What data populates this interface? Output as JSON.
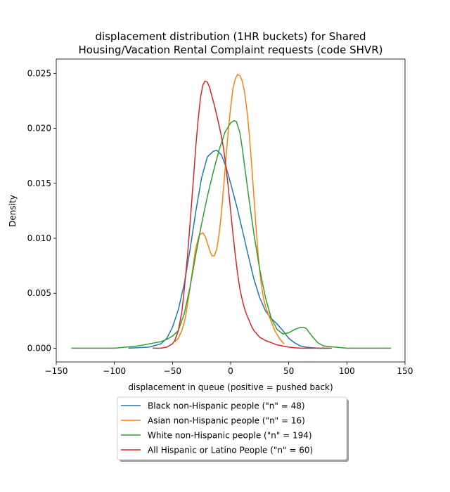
{
  "chart_data": {
    "type": "line",
    "title_lines": [
      "displacement distribution (1HR buckets) for Shared",
      "Housing/Vacation Rental Complaint requests (code SHVR)"
    ],
    "xlabel": "displacement in queue (positive = pushed back)",
    "ylabel": "Density",
    "xlim": [
      -150,
      150
    ],
    "ylim": [
      -0.00125,
      0.0263
    ],
    "xticks": [
      -150,
      -100,
      -50,
      0,
      50,
      100,
      150
    ],
    "xtick_labels": [
      "−150",
      "−100",
      "−50",
      "0",
      "50",
      "100",
      "150"
    ],
    "yticks": [
      0.0,
      0.005,
      0.01,
      0.015,
      0.02,
      0.025
    ],
    "ytick_labels": [
      "0.000",
      "0.005",
      "0.010",
      "0.015",
      "0.020",
      "0.025"
    ],
    "grid": false,
    "legend_position": "below plot",
    "series": [
      {
        "name": "Black non-Hispanic people (\"n\" = 48)",
        "color": "#1f77b4",
        "x": [
          -88,
          -70,
          -60,
          -55,
          -50,
          -45,
          -40,
          -35,
          -30,
          -25,
          -20,
          -15,
          -12,
          -8,
          -4,
          0,
          5,
          10,
          15,
          20,
          25,
          30,
          35,
          40,
          45,
          50,
          55,
          60,
          65,
          70,
          75,
          84
        ],
        "y": [
          0.0,
          0.0001,
          0.0004,
          0.0009,
          0.0019,
          0.0035,
          0.0058,
          0.0089,
          0.0124,
          0.0155,
          0.0174,
          0.0179,
          0.018,
          0.0176,
          0.0165,
          0.015,
          0.013,
          0.0108,
          0.0085,
          0.0063,
          0.0046,
          0.0034,
          0.0027,
          0.0022,
          0.0016,
          0.0009,
          0.0005,
          0.0002,
          0.0001,
          5e-05,
          0.0,
          0.0
        ]
      },
      {
        "name": "Asian non-Hispanic people (\"n\" = 16)",
        "color": "#ff7f0e",
        "x": [
          -48,
          -45,
          -42,
          -40,
          -38,
          -35,
          -32,
          -30,
          -27,
          -24,
          -22,
          -20,
          -18,
          -16,
          -14,
          -12,
          -10,
          -8,
          -6,
          -4,
          -2,
          0,
          2,
          4,
          6,
          8,
          10,
          12,
          14,
          16,
          18,
          20,
          22,
          24,
          26,
          28,
          30,
          32,
          35,
          38,
          42,
          45,
          46
        ],
        "y": [
          0.0006,
          0.0009,
          0.0016,
          0.0023,
          0.0034,
          0.0054,
          0.0077,
          0.0091,
          0.0103,
          0.0105,
          0.0102,
          0.0096,
          0.0089,
          0.0084,
          0.0084,
          0.009,
          0.0103,
          0.0122,
          0.0147,
          0.0173,
          0.0198,
          0.0219,
          0.0236,
          0.0245,
          0.0249,
          0.0248,
          0.0243,
          0.0233,
          0.0217,
          0.0195,
          0.0168,
          0.0138,
          0.0108,
          0.0081,
          0.0061,
          0.0047,
          0.0038,
          0.0032,
          0.0024,
          0.0016,
          0.0009,
          0.0005,
          0.0004
        ]
      },
      {
        "name": "White non-Hispanic people (\"n\" = 194)",
        "color": "#2ca02c",
        "x": [
          -137,
          -120,
          -100,
          -90,
          -80,
          -70,
          -60,
          -55,
          -50,
          -45,
          -40,
          -35,
          -30,
          -25,
          -20,
          -15,
          -10,
          -5,
          0,
          3,
          5,
          8,
          10,
          15,
          20,
          25,
          30,
          35,
          40,
          45,
          50,
          55,
          60,
          63,
          65,
          70,
          75,
          80,
          90,
          100,
          120,
          138
        ],
        "y": [
          0.0,
          0.0,
          0.0,
          0.0001,
          0.0002,
          0.0004,
          0.0006,
          0.0008,
          0.0011,
          0.0016,
          0.0031,
          0.0055,
          0.0085,
          0.0113,
          0.0138,
          0.016,
          0.018,
          0.0196,
          0.0205,
          0.0207,
          0.0206,
          0.0196,
          0.0182,
          0.0142,
          0.0104,
          0.0072,
          0.0046,
          0.0027,
          0.0017,
          0.0013,
          0.0014,
          0.0017,
          0.0019,
          0.0019,
          0.0018,
          0.0011,
          0.0005,
          0.0002,
          0.0001,
          0.0,
          0.0,
          0.0
        ]
      },
      {
        "name": "All Hispanic or Latino People (\"n\" = 60)",
        "color": "#d62728",
        "x": [
          -67,
          -60,
          -55,
          -50,
          -48,
          -45,
          -42,
          -40,
          -37,
          -35,
          -32,
          -30,
          -28,
          -26,
          -24,
          -22,
          -20,
          -18,
          -16,
          -14,
          -12,
          -10,
          -8,
          -6,
          -4,
          -2,
          0,
          2,
          4,
          6,
          8,
          10,
          12,
          14,
          16,
          18,
          20,
          25,
          30,
          35,
          40,
          45,
          50,
          55,
          60,
          65,
          70,
          80,
          87
        ],
        "y": [
          0.0,
          0.0,
          0.0001,
          0.0004,
          0.0007,
          0.0016,
          0.0033,
          0.0052,
          0.0085,
          0.0112,
          0.0154,
          0.0183,
          0.0207,
          0.0227,
          0.0239,
          0.0243,
          0.0242,
          0.0237,
          0.0229,
          0.0221,
          0.0212,
          0.0203,
          0.0193,
          0.0181,
          0.0165,
          0.0146,
          0.0125,
          0.0104,
          0.0085,
          0.0068,
          0.0054,
          0.0044,
          0.0036,
          0.003,
          0.0025,
          0.002,
          0.0016,
          0.001,
          0.0007,
          0.0005,
          0.0003,
          0.0002,
          0.0001,
          5e-05,
          0.0,
          0.0,
          0.0,
          0.0,
          0.0
        ]
      }
    ]
  }
}
